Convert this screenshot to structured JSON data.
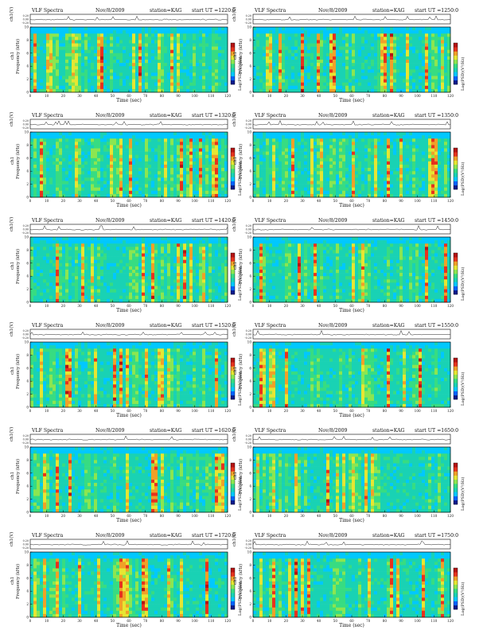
{
  "chart_data": {
    "type": "heatmap",
    "labels": {
      "header_title": "VLF Spectra",
      "station": "station=KAG",
      "start_prefix": "start  UT =",
      "ch_axis": "ch1(V)",
      "freq_axis": "Frequency  (kHz)",
      "freq_axis_alt": "ch1",
      "time_axis": "Time  (sec)",
      "cbar_axis": "Log(PSD)(V²/Hz)"
    },
    "ch_ticks": [
      "0.20",
      "0.00",
      "-0.20"
    ],
    "freq_ticks": [
      "0",
      "2",
      "4",
      "6",
      "8",
      "10"
    ],
    "time_ticks": [
      "0",
      "10",
      "20",
      "30",
      "40",
      "50",
      "60",
      "70",
      "80",
      "90",
      "100",
      "110",
      "120"
    ],
    "xlim": [
      0,
      120
    ],
    "ylim": [
      0,
      10
    ],
    "colormap": [
      "#0a1a8c",
      "#0064ff",
      "#00c8ff",
      "#19d2b4",
      "#37dc82",
      "#8ce650",
      "#e6e632",
      "#f0a028",
      "#e6321e",
      "#b41414"
    ],
    "panels": [
      {
        "date": "Nov/8/2009",
        "start_ut": "1220:0"
      },
      {
        "date": "Nov/8/2009",
        "start_ut": "1250:0"
      },
      {
        "date": "Nov/8/2009",
        "start_ut": "1320:0"
      },
      {
        "date": "Nov/8/2009",
        "start_ut": "1350:0"
      },
      {
        "date": "Nov/8/2009",
        "start_ut": "1420:0"
      },
      {
        "date": "Nov/8/2009",
        "start_ut": "1450:0"
      },
      {
        "date": "Nov/8/2009",
        "start_ut": "1520:0"
      },
      {
        "date": "Nov/8/2009",
        "start_ut": "1550:0"
      },
      {
        "date": "Nov/8/2009",
        "start_ut": "1620:0"
      },
      {
        "date": "Nov/8/2009",
        "start_ut": "1650:0"
      },
      {
        "date": "Nov/8/2009",
        "start_ut": "1720:0"
      },
      {
        "date": "Nov/8/2009",
        "start_ut": "1750:0"
      }
    ]
  }
}
